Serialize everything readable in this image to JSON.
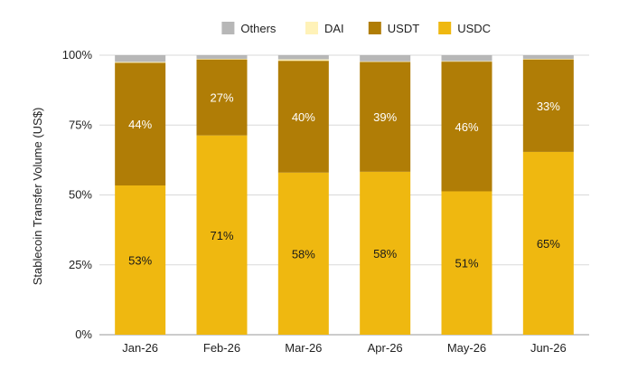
{
  "chart_data": {
    "type": "bar",
    "stacked": true,
    "ylabel": "Stablecoin Transfer Volume (US$)",
    "xlabel": "",
    "title": "",
    "ylim": [
      0,
      100
    ],
    "y_ticks": [
      "0%",
      "25%",
      "50%",
      "75%",
      "100%"
    ],
    "grid": "horizontal",
    "legend_position": "top",
    "categories": [
      "Jan-26",
      "Feb-26",
      "Mar-26",
      "Apr-26",
      "May-26",
      "Jun-26"
    ],
    "series": [
      {
        "name": "USDC",
        "color": "#efb810",
        "values": [
          53.4,
          71.3,
          58.0,
          58.3,
          51.3,
          65.4
        ],
        "labels": [
          "53%",
          "71%",
          "58%",
          "58%",
          "51%",
          "65%"
        ],
        "label_color": "#1a1a1a"
      },
      {
        "name": "USDT",
        "color": "#b07d06",
        "values": [
          43.9,
          27.2,
          40.0,
          39.3,
          46.4,
          33.1
        ],
        "labels": [
          "44%",
          "27%",
          "40%",
          "39%",
          "46%",
          "33%"
        ],
        "label_color": "#ffffff"
      },
      {
        "name": "DAI",
        "color": "#fff2b8",
        "values": [
          0.3,
          0.2,
          0.5,
          0.2,
          0.2,
          0.2
        ],
        "labels": []
      },
      {
        "name": "Others",
        "color": "#b7b7b7",
        "values": [
          2.4,
          1.3,
          1.5,
          2.2,
          2.1,
          1.3
        ],
        "labels": []
      }
    ],
    "legend_order": [
      "Others",
      "DAI",
      "USDT",
      "USDC"
    ]
  }
}
